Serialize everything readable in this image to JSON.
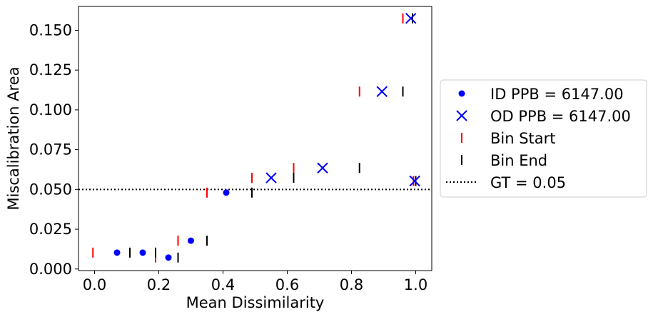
{
  "chart_data": {
    "type": "scatter",
    "xlabel": "Mean Dissimilarity",
    "ylabel": "Miscalibration Area",
    "xlim": [
      -0.05,
      1.05
    ],
    "ylim": [
      -0.001,
      0.165
    ],
    "xticks": [
      0.0,
      0.2,
      0.4,
      0.6,
      0.8,
      1.0
    ],
    "xtick_labels": [
      "0.0",
      "0.2",
      "0.4",
      "0.6",
      "0.8",
      "1.0"
    ],
    "yticks": [
      0.0,
      0.025,
      0.05,
      0.075,
      0.1,
      0.125,
      0.15
    ],
    "ytick_labels": [
      "0.000",
      "0.025",
      "0.050",
      "0.075",
      "0.100",
      "0.125",
      "0.150"
    ],
    "grid": false,
    "legend_position": "outside-right",
    "colors": {
      "id": "#0000ff",
      "od": "#0000ff",
      "bin_start": "#ff0000",
      "bin_end": "#000000",
      "gt": "#000000"
    },
    "series": [
      {
        "name": "ID PPB = 6147.00",
        "marker": "dot",
        "points": [
          [
            0.07,
            0.0103
          ],
          [
            0.15,
            0.0103
          ],
          [
            0.23,
            0.0072
          ],
          [
            0.3,
            0.0178
          ],
          [
            0.41,
            0.048
          ]
        ]
      },
      {
        "name": "OD PPB = 6147.00",
        "marker": "x",
        "points": [
          [
            0.55,
            0.0573
          ],
          [
            0.71,
            0.0635
          ],
          [
            0.895,
            0.1115
          ],
          [
            0.985,
            0.1575
          ],
          [
            0.997,
            0.0553
          ]
        ]
      },
      {
        "name": "Bin Start",
        "marker": "vline",
        "points": [
          [
            -0.005,
            0.0103
          ],
          [
            0.19,
            0.0072
          ],
          [
            0.26,
            0.0178
          ],
          [
            0.35,
            0.048
          ],
          [
            0.49,
            0.0573
          ],
          [
            0.62,
            0.0635
          ],
          [
            0.825,
            0.1115
          ],
          [
            0.96,
            0.1575
          ],
          [
            0.993,
            0.0553
          ]
        ]
      },
      {
        "name": "Bin End",
        "marker": "vline",
        "points": [
          [
            0.11,
            0.0103
          ],
          [
            0.19,
            0.0103
          ],
          [
            0.26,
            0.0072
          ],
          [
            0.35,
            0.0178
          ],
          [
            0.49,
            0.048
          ],
          [
            0.62,
            0.0573
          ],
          [
            0.825,
            0.0635
          ],
          [
            0.96,
            0.1115
          ],
          [
            0.99,
            0.1575
          ],
          [
            1.0,
            0.0553
          ]
        ]
      }
    ],
    "reference_line": {
      "name": "GT = 0.05",
      "y": 0.05,
      "style": "dotted"
    }
  }
}
